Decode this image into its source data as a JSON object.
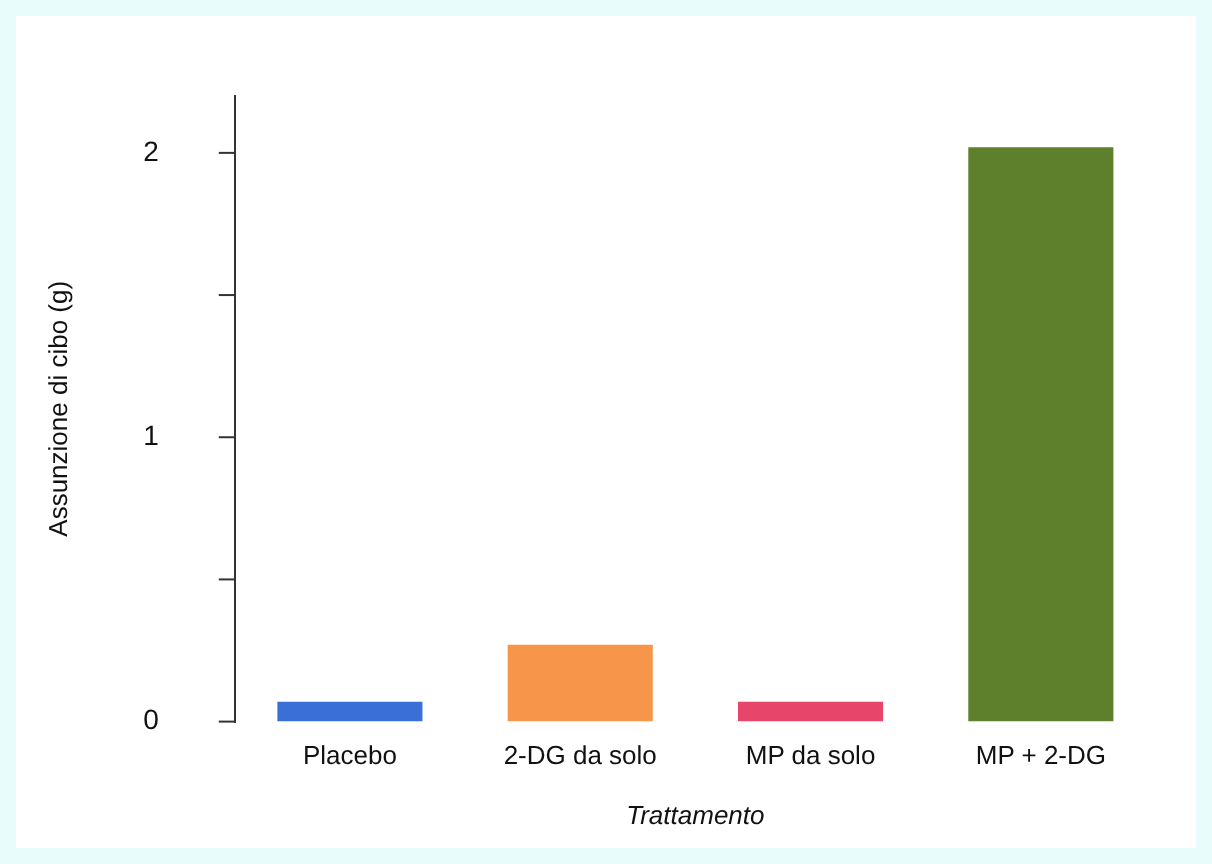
{
  "chart_data": {
    "type": "bar",
    "xlabel": "Trattamento",
    "ylabel": "Assunzione di cibo (g)",
    "categories": [
      "Placebo",
      "2-DG da solo",
      "MP da solo",
      "MP + 2-DG"
    ],
    "values": [
      0.07,
      0.27,
      0.07,
      2.02
    ],
    "colors": [
      "#3a6fd8",
      "#f7964a",
      "#e8456a",
      "#5e7f2c"
    ],
    "ylim": [
      0,
      2.2
    ],
    "yticks": [
      0,
      {
        "value": 0.5,
        "label": null
      },
      1,
      {
        "value": 1.5,
        "label": null
      },
      2
    ],
    "grid": false,
    "legend": false
  }
}
